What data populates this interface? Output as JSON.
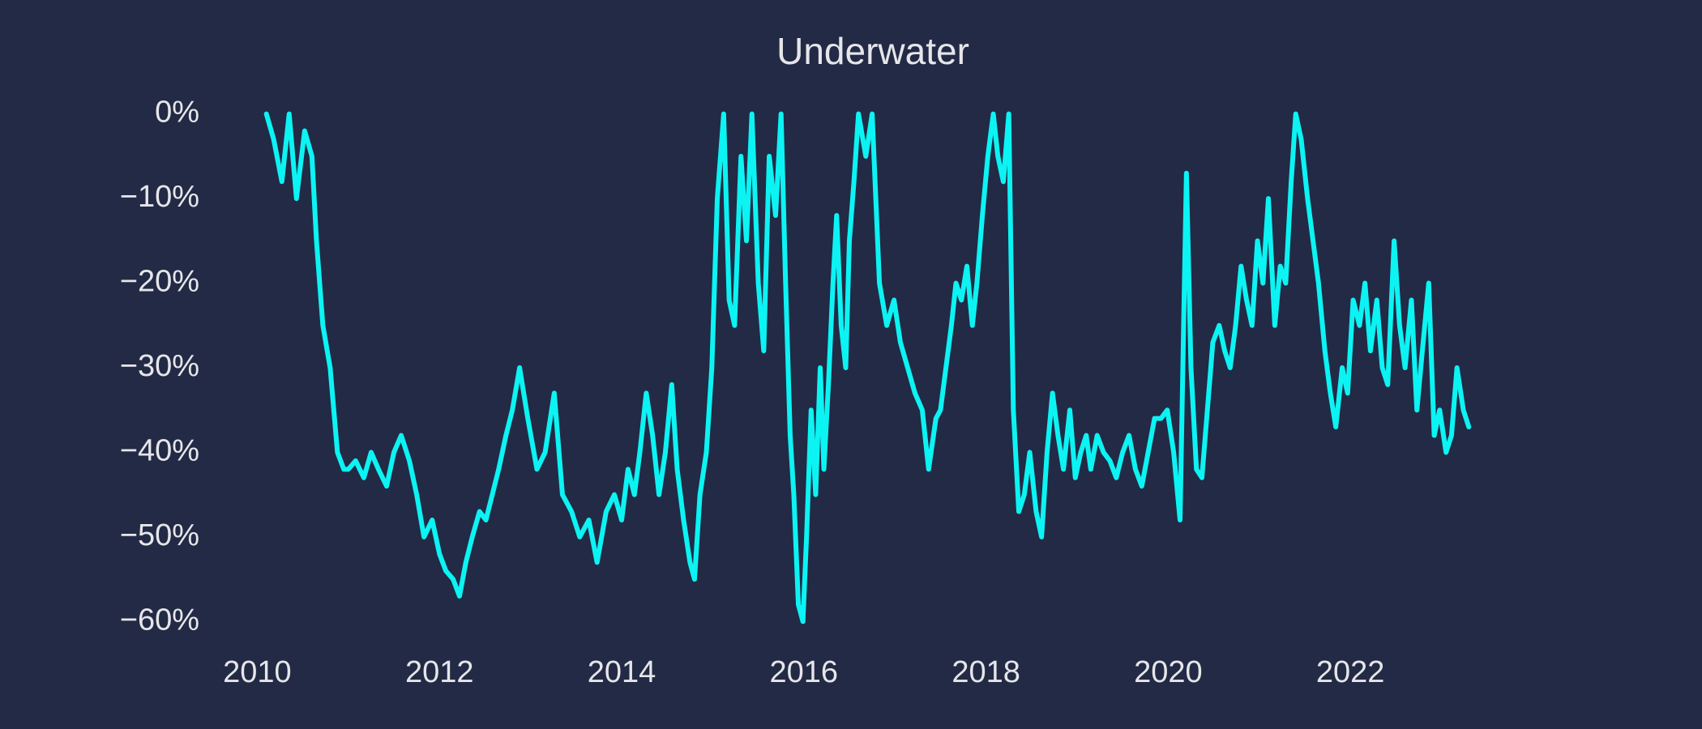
{
  "chart_data": {
    "type": "line",
    "title": "Underwater",
    "x": [
      2010.1,
      2010.18,
      2010.27,
      2010.35,
      2010.43,
      2010.52,
      2010.6,
      2010.65,
      2010.72,
      2010.8,
      2010.88,
      2010.95,
      2011.0,
      2011.08,
      2011.17,
      2011.25,
      2011.33,
      2011.42,
      2011.5,
      2011.58,
      2011.67,
      2011.75,
      2011.83,
      2011.92,
      2012.0,
      2012.07,
      2012.15,
      2012.22,
      2012.29,
      2012.36,
      2012.44,
      2012.51,
      2012.58,
      2012.65,
      2012.73,
      2012.8,
      2012.88,
      2012.97,
      2013.07,
      2013.16,
      2013.26,
      2013.35,
      2013.45,
      2013.54,
      2013.64,
      2013.73,
      2013.83,
      2013.92,
      2014.0,
      2014.07,
      2014.14,
      2014.2,
      2014.27,
      2014.34,
      2014.41,
      2014.48,
      2014.55,
      2014.61,
      2014.68,
      2014.75,
      2014.8,
      2014.86,
      2014.93,
      2014.99,
      2015.05,
      2015.12,
      2015.18,
      2015.24,
      2015.31,
      2015.37,
      2015.43,
      2015.5,
      2015.56,
      2015.62,
      2015.69,
      2015.75,
      2015.8,
      2015.85,
      2015.89,
      2015.94,
      2015.99,
      2016.03,
      2016.08,
      2016.13,
      2016.18,
      2016.22,
      2016.27,
      2016.32,
      2016.36,
      2016.41,
      2016.46,
      2016.5,
      2016.55,
      2016.6,
      2016.68,
      2016.75,
      2016.83,
      2016.91,
      2016.99,
      2017.06,
      2017.14,
      2017.22,
      2017.3,
      2017.37,
      2017.45,
      2017.5,
      2017.56,
      2017.62,
      2017.67,
      2017.73,
      2017.79,
      2017.85,
      2017.9,
      2017.96,
      2018.02,
      2018.08,
      2018.13,
      2018.19,
      2018.25,
      2018.3,
      2018.36,
      2018.42,
      2018.48,
      2018.55,
      2018.61,
      2018.67,
      2018.73,
      2018.79,
      2018.85,
      2018.92,
      2018.98,
      2019.04,
      2019.1,
      2019.15,
      2019.22,
      2019.29,
      2019.36,
      2019.43,
      2019.5,
      2019.57,
      2019.64,
      2019.71,
      2019.78,
      2019.85,
      2019.92,
      2019.99,
      2020.06,
      2020.13,
      2020.2,
      2020.25,
      2020.31,
      2020.37,
      2020.43,
      2020.49,
      2020.56,
      2020.62,
      2020.68,
      2020.74,
      2020.8,
      2020.86,
      2020.92,
      2020.98,
      2021.04,
      2021.1,
      2021.17,
      2021.23,
      2021.29,
      2021.35,
      2021.4,
      2021.46,
      2021.53,
      2021.59,
      2021.65,
      2021.72,
      2021.78,
      2021.84,
      2021.91,
      2021.97,
      2022.03,
      2022.1,
      2022.16,
      2022.22,
      2022.29,
      2022.35,
      2022.41,
      2022.48,
      2022.54,
      2022.6,
      2022.67,
      2022.73,
      2022.79,
      2022.86,
      2022.92,
      2022.98,
      2023.05,
      2023.11,
      2023.17,
      2023.24,
      2023.3
    ],
    "series": [
      {
        "color": "#0cf3f3",
        "values": [
          0,
          -3,
          -8,
          0,
          -10,
          -2,
          -5,
          -15,
          -25,
          -30,
          -40,
          -42,
          -42,
          -41,
          -43,
          -40,
          -42,
          -44,
          -40,
          -38,
          -41,
          -45,
          -50,
          -48,
          -52,
          -54,
          -55,
          -57,
          -53,
          -50,
          -47,
          -48,
          -45,
          -42,
          -38,
          -35,
          -30,
          -36,
          -42,
          -40,
          -33,
          -45,
          -47,
          -50,
          -48,
          -53,
          -47,
          -45,
          -48,
          -42,
          -45,
          -40,
          -33,
          -38,
          -45,
          -40,
          -32,
          -42,
          -48,
          -53,
          -55,
          -45,
          -40,
          -30,
          -10,
          0,
          -22,
          -25,
          -5,
          -15,
          0,
          -20,
          -28,
          -5,
          -12,
          0,
          -20,
          -38,
          -45,
          -58,
          -60,
          -50,
          -35,
          -45,
          -30,
          -42,
          -32,
          -20,
          -12,
          -25,
          -30,
          -15,
          -8,
          0,
          -5,
          0,
          -20,
          -25,
          -22,
          -27,
          -30,
          -33,
          -35,
          -42,
          -36,
          -35,
          -30,
          -25,
          -20,
          -22,
          -18,
          -25,
          -20,
          -12,
          -5,
          0,
          -5,
          -8,
          0,
          -35,
          -47,
          -45,
          -40,
          -47,
          -50,
          -40,
          -33,
          -38,
          -42,
          -35,
          -43,
          -40,
          -38,
          -42,
          -38,
          -40,
          -41,
          -43,
          -40,
          -38,
          -42,
          -44,
          -40,
          -36,
          -36,
          -35,
          -40,
          -48,
          -7,
          -30,
          -42,
          -43,
          -35,
          -27,
          -25,
          -28,
          -30,
          -25,
          -18,
          -22,
          -25,
          -15,
          -20,
          -10,
          -25,
          -18,
          -20,
          -8,
          0,
          -3,
          -10,
          -15,
          -20,
          -28,
          -33,
          -37,
          -30,
          -33,
          -22,
          -25,
          -20,
          -28,
          -22,
          -30,
          -32,
          -15,
          -25,
          -30,
          -22,
          -35,
          -28,
          -20,
          -38,
          -35,
          -40,
          -38,
          -30,
          -35,
          -37
        ]
      }
    ],
    "xlim": [
      2009.4,
      2023.6
    ],
    "xticks": [
      2010,
      2012,
      2014,
      2016,
      2018,
      2020,
      2022
    ],
    "ylim": [
      -61.5,
      1.5
    ],
    "yticks": [
      {
        "value": 0,
        "label": "0%"
      },
      {
        "value": -10,
        "label": "−10%"
      },
      {
        "value": -20,
        "label": "−20%"
      },
      {
        "value": -30,
        "label": "−30%"
      },
      {
        "value": -40,
        "label": "−40%"
      },
      {
        "value": -50,
        "label": "−50%"
      },
      {
        "value": -60,
        "label": "−60%"
      }
    ]
  }
}
